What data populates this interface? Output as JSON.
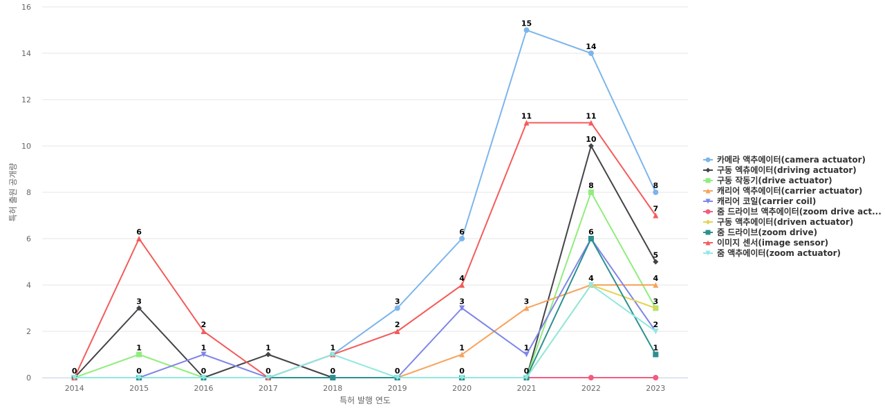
{
  "chart_data": {
    "type": "line",
    "xlabel": "특허 발행 연도",
    "ylabel": "특허 출원 공개량",
    "ylim": [
      0,
      16
    ],
    "yticks": [
      0,
      2,
      4,
      6,
      8,
      10,
      12,
      14,
      16
    ],
    "grid": true,
    "legend_position": "right",
    "categories": [
      "2014",
      "2015",
      "2016",
      "2017",
      "2018",
      "2019",
      "2020",
      "2021",
      "2022",
      "2023"
    ],
    "series": [
      {
        "name": "카메라 액추에이터(camera actuator)",
        "color": "#7cb5ec",
        "marker": "circle",
        "values": [
          0,
          0,
          0,
          0,
          1,
          3,
          6,
          15,
          14,
          8
        ],
        "labels": [
          null,
          null,
          null,
          null,
          null,
          "3",
          "6",
          "15",
          "14",
          "8"
        ]
      },
      {
        "name": "구동 엑츄에이터(driving actuator)",
        "color": "#434348",
        "marker": "diamond",
        "values": [
          0,
          3,
          0,
          1,
          0,
          0,
          0,
          0,
          10,
          5
        ],
        "labels": [
          null,
          "3",
          null,
          "1",
          null,
          null,
          null,
          null,
          "10",
          "5"
        ]
      },
      {
        "name": "구동 작동기(drive actuator)",
        "color": "#90ed7d",
        "marker": "square",
        "values": [
          0,
          1,
          0,
          0,
          0,
          0,
          0,
          0,
          8,
          3
        ],
        "labels": [
          null,
          "1",
          null,
          null,
          null,
          null,
          null,
          null,
          "8",
          "3"
        ]
      },
      {
        "name": "캐리어 액추에이터(carrier actuator)",
        "color": "#f7a35c",
        "marker": "triangle",
        "values": [
          0,
          0,
          0,
          0,
          0,
          0,
          1,
          3,
          4,
          4
        ],
        "labels": [
          null,
          null,
          null,
          null,
          null,
          null,
          "1",
          "3",
          "4",
          "4"
        ]
      },
      {
        "name": "캐리어 코일(carrier coil)",
        "color": "#8085e9",
        "marker": "triangle-down",
        "values": [
          0,
          0,
          1,
          0,
          0,
          0,
          3,
          1,
          6,
          2
        ],
        "labels": [
          null,
          null,
          "1",
          null,
          null,
          null,
          "3",
          "1",
          null,
          "2"
        ]
      },
      {
        "name": "줌 드라이브 액추에이터(zoom drive act...",
        "color": "#f15c80",
        "marker": "circle",
        "values": [
          0,
          0,
          0,
          0,
          0,
          0,
          0,
          0,
          0,
          0
        ],
        "labels": [
          null,
          null,
          null,
          null,
          null,
          null,
          null,
          null,
          null,
          null
        ]
      },
      {
        "name": "구동 액추에이터(driven actuator)",
        "color": "#e4d354",
        "marker": "diamond",
        "values": [
          0,
          0,
          0,
          0,
          0,
          0,
          0,
          0,
          4,
          3
        ],
        "labels": [
          null,
          null,
          null,
          null,
          null,
          null,
          null,
          null,
          null,
          null
        ]
      },
      {
        "name": "줌 드라이브(zoom drive)",
        "color": "#2b908f",
        "marker": "square",
        "values": [
          0,
          0,
          0,
          0,
          0,
          0,
          0,
          0,
          6,
          1
        ],
        "labels": [
          null,
          null,
          null,
          null,
          "0",
          null,
          null,
          null,
          "6",
          "1"
        ]
      },
      {
        "name": "이미지 센서(image sensor)",
        "color": "#f45b5b",
        "marker": "triangle",
        "values": [
          0,
          6,
          2,
          0,
          1,
          2,
          4,
          11,
          11,
          7
        ],
        "labels": [
          null,
          "6",
          "2",
          null,
          null,
          "2",
          "4",
          "11",
          "11",
          "7"
        ]
      },
      {
        "name": "줌 액추에이터(zoom actuator)",
        "color": "#91e8e1",
        "marker": "triangle-down",
        "values": [
          0,
          0,
          0,
          0,
          1,
          0,
          0,
          0,
          4,
          2
        ],
        "labels": [
          "0",
          "0",
          "0",
          "0",
          "1",
          "0",
          "0",
          "0",
          null,
          null
        ]
      }
    ]
  }
}
